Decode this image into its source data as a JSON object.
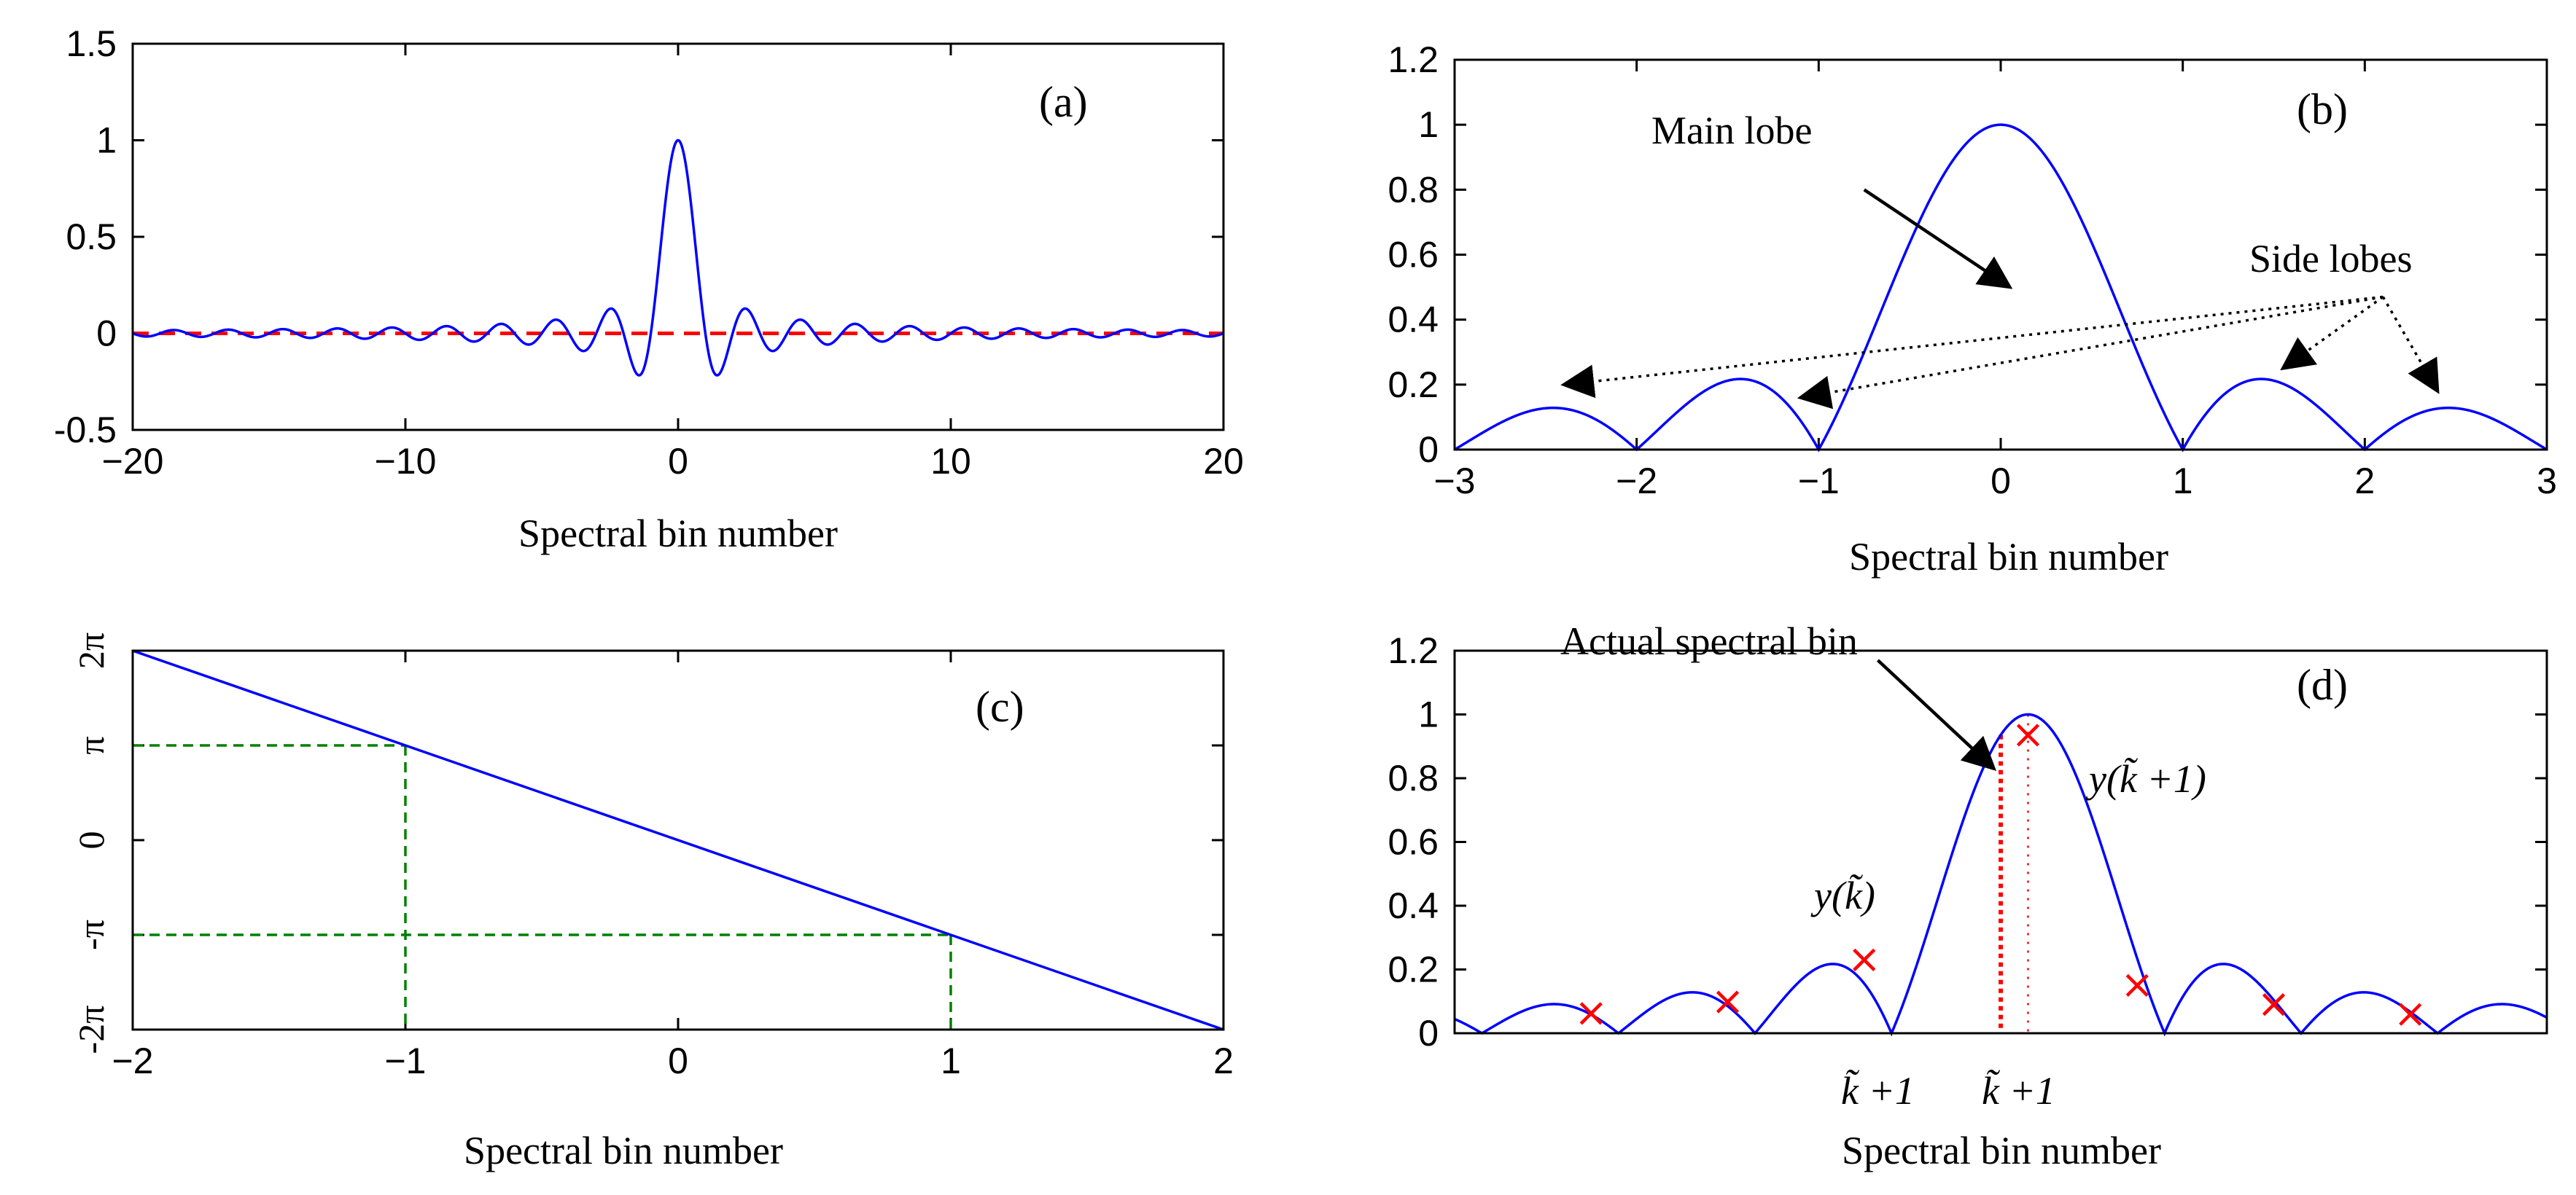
{
  "colors": {
    "curve": "#0000ff",
    "reference_line": "#ff0000",
    "guide_lines": "#008000",
    "markers": "#ff0000",
    "axes": "#000000"
  },
  "chart_data": [
    {
      "id": "a",
      "type": "line",
      "panel_label": "(a)",
      "xlabel": "Spectral bin number",
      "ylabel": "",
      "xlim": [
        -20,
        20
      ],
      "ylim": [
        -0.5,
        1.5
      ],
      "xticks": [
        -20,
        -10,
        0,
        10,
        20
      ],
      "xtick_labels": [
        "−20",
        "−10",
        "0",
        "10",
        "20"
      ],
      "yticks": [
        -0.5,
        0,
        0.5,
        1,
        1.5
      ],
      "ytick_labels": [
        "-0.5",
        "0",
        "0.5",
        "1",
        "1.5"
      ],
      "series": [
        {
          "name": "sinc response",
          "function": "sin(pi x)/(pi x)",
          "x_range": [
            -20,
            20
          ],
          "color": "#0000ff",
          "style": "solid"
        },
        {
          "name": "zero reference",
          "values": [
            0,
            0
          ],
          "x": [
            -20,
            20
          ],
          "color": "#ff0000",
          "style": "dashed"
        }
      ]
    },
    {
      "id": "b",
      "type": "line",
      "panel_label": "(b)",
      "xlabel": "Spectral bin number",
      "xlim": [
        -3,
        3
      ],
      "ylim": [
        0,
        1.2
      ],
      "xticks": [
        -3,
        -2,
        -1,
        0,
        1,
        2,
        3
      ],
      "xtick_labels": [
        "−3",
        "−2",
        "−1",
        "0",
        "1",
        "2",
        "3"
      ],
      "yticks": [
        0,
        0.2,
        0.4,
        0.6,
        0.8,
        1,
        1.2
      ],
      "ytick_labels": [
        "0",
        "0.2",
        "0.4",
        "0.6",
        "0.8",
        "1",
        "1.2"
      ],
      "series": [
        {
          "name": "magnitude",
          "function": "|sin(pi x)/(pi x)|",
          "x_range": [
            -3,
            3
          ],
          "color": "#0000ff",
          "style": "solid"
        }
      ],
      "annotations": [
        {
          "text": "Main lobe",
          "arrow_from": [
            -0.75,
            0.8
          ],
          "arrow_to": [
            0.05,
            0.5
          ],
          "arrow_style": "solid"
        },
        {
          "text": "Side lobes",
          "arrow_origin": [
            2.1,
            0.47
          ],
          "arrow_targets": [
            [
              -2.4,
              0.2
            ],
            [
              -1.1,
              0.16
            ],
            [
              1.55,
              0.25
            ],
            [
              2.4,
              0.18
            ]
          ],
          "arrow_style": "dotted"
        }
      ]
    },
    {
      "id": "c",
      "type": "line",
      "panel_label": "(c)",
      "xlabel": "Spectral bin number",
      "xlim": [
        -2,
        2
      ],
      "ylim": [
        -6.2832,
        6.2832
      ],
      "xticks": [
        -2,
        -1,
        0,
        1,
        2
      ],
      "xtick_labels": [
        "−2",
        "−1",
        "0",
        "1",
        "2"
      ],
      "yticks": [
        -6.2832,
        -3.1416,
        0,
        3.1416,
        6.2832
      ],
      "ytick_labels": [
        "-2π",
        "-π",
        "0",
        "π",
        "2π"
      ],
      "series": [
        {
          "name": "phase",
          "x": [
            -2,
            2
          ],
          "values": [
            6.2832,
            -6.2832
          ],
          "color": "#0000ff",
          "style": "solid"
        }
      ],
      "guides": [
        {
          "x": -1,
          "y": 3.1416,
          "color": "#008000",
          "style": "dashed"
        },
        {
          "x": 1,
          "y": -3.1416,
          "color": "#008000",
          "style": "dashed"
        }
      ]
    },
    {
      "id": "d",
      "type": "line",
      "panel_label": "(d)",
      "xlabel": "Spectral bin number",
      "xlim": [
        -4,
        4
      ],
      "ylim": [
        0,
        1.2
      ],
      "xticks": [],
      "yticks": [
        0,
        0.2,
        0.4,
        0.6,
        0.8,
        1,
        1.2
      ],
      "ytick_labels": [
        "0",
        "0.2",
        "0.4",
        "0.6",
        "0.8",
        "1",
        "1.2"
      ],
      "series": [
        {
          "name": "magnitude",
          "function": "|sin(pi (x - 0.2))/(pi (x - 0.2))|",
          "x_range": [
            -4,
            4
          ],
          "color": "#0000ff",
          "style": "solid"
        }
      ],
      "sample_x": [
        -2.8,
        -1.8,
        -0.8,
        0.2,
        1.2,
        2.2,
        3.2
      ],
      "markers": [
        {
          "x": -3.0,
          "y": 0.062
        },
        {
          "x": -2.0,
          "y": 0.098
        },
        {
          "x": -1.0,
          "y": 0.23
        },
        {
          "x": 0.2,
          "y": 0.935
        },
        {
          "x": 1.0,
          "y": 0.15
        },
        {
          "x": 2.0,
          "y": 0.09
        },
        {
          "x": 3.0,
          "y": 0.059
        }
      ],
      "actual_bin_x": 0,
      "annotations": [
        {
          "text": "Actual spectral bin",
          "arrow_from": [
            -0.9,
            1.17
          ],
          "arrow_to": [
            -0.05,
            0.83
          ]
        },
        {
          "text": "y(k̃)",
          "at": [
            -1.0,
            0.38
          ]
        },
        {
          "text": "y(k̃ +1)",
          "at": [
            0.9,
            0.82
          ]
        }
      ],
      "bottom_labels": [
        "k̃ +1",
        "k̃ +1"
      ]
    }
  ]
}
